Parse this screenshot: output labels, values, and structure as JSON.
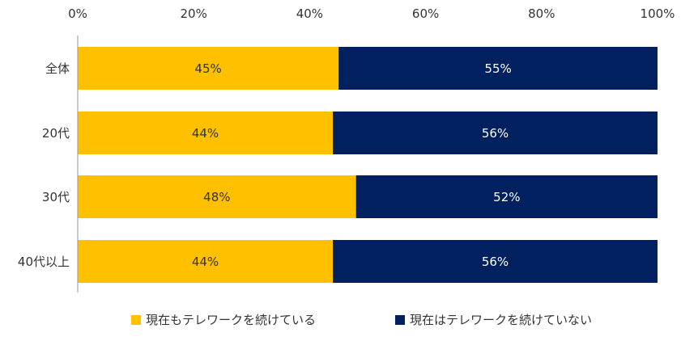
{
  "chart_data": {
    "type": "bar",
    "orientation": "horizontal",
    "stacked": true,
    "categories": [
      "全体",
      "20代",
      "30代",
      "40代以上"
    ],
    "series": [
      {
        "name": "現在もテレワークを続けている",
        "values": [
          45,
          44,
          48,
          44
        ],
        "labels": [
          "45%",
          "44%",
          "48%",
          "44%"
        ],
        "color": "#FFC000",
        "label_color": "#333333"
      },
      {
        "name": "現在はテレワークを続けていない",
        "values": [
          55,
          56,
          52,
          56
        ],
        "labels": [
          "55%",
          "56%",
          "52%",
          "56%"
        ],
        "color": "#002060",
        "label_color": "#ffffff"
      }
    ],
    "x_ticks": [
      "0%",
      "20%",
      "40%",
      "60%",
      "80%",
      "100%"
    ],
    "xlim": [
      0,
      100
    ],
    "x_axis_position": "top",
    "grid": false,
    "legend_position": "bottom"
  }
}
